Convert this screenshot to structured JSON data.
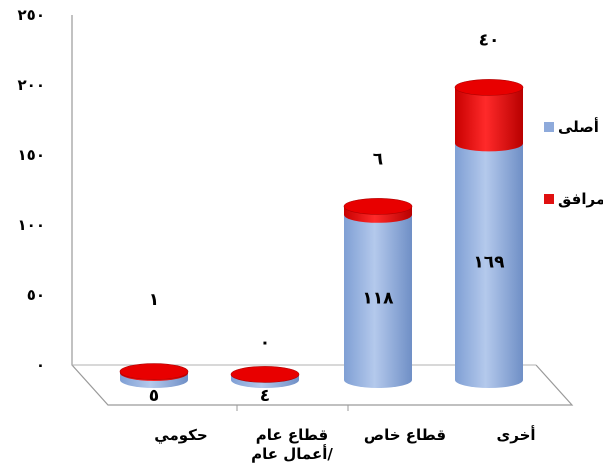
{
  "chart_data": {
    "type": "bar",
    "stacked": true,
    "style": "3d-cylinder",
    "categories": [
      "حكومي",
      "قطاع عام /أعمال عام",
      "قطاع خاص",
      "أخرى"
    ],
    "category_lines": [
      [
        "حكومي"
      ],
      [
        "قطاع عام",
        "/أعمال عام"
      ],
      [
        "قطاع خاص"
      ],
      [
        "أخرى"
      ]
    ],
    "series": [
      {
        "name": "أصلى",
        "color": "#8EAADB",
        "values": [
          5,
          4,
          118,
          169
        ],
        "value_labels": [
          "٥",
          "٤",
          "١١٨",
          "١٦٩"
        ]
      },
      {
        "name": "مرافق",
        "color": "#E01010",
        "values": [
          1,
          0,
          6,
          40
        ],
        "value_labels": [
          "١",
          "٠",
          "٦",
          "٤٠"
        ]
      }
    ],
    "ylim": [
      0,
      250
    ],
    "yticks": [
      0,
      50,
      100,
      150,
      200,
      250
    ],
    "ytick_labels": [
      "٠",
      "٥٠",
      "١٠٠",
      "١٥٠",
      "٢٠٠",
      "٢٥٠"
    ],
    "legend_position": "right",
    "grid": false
  }
}
